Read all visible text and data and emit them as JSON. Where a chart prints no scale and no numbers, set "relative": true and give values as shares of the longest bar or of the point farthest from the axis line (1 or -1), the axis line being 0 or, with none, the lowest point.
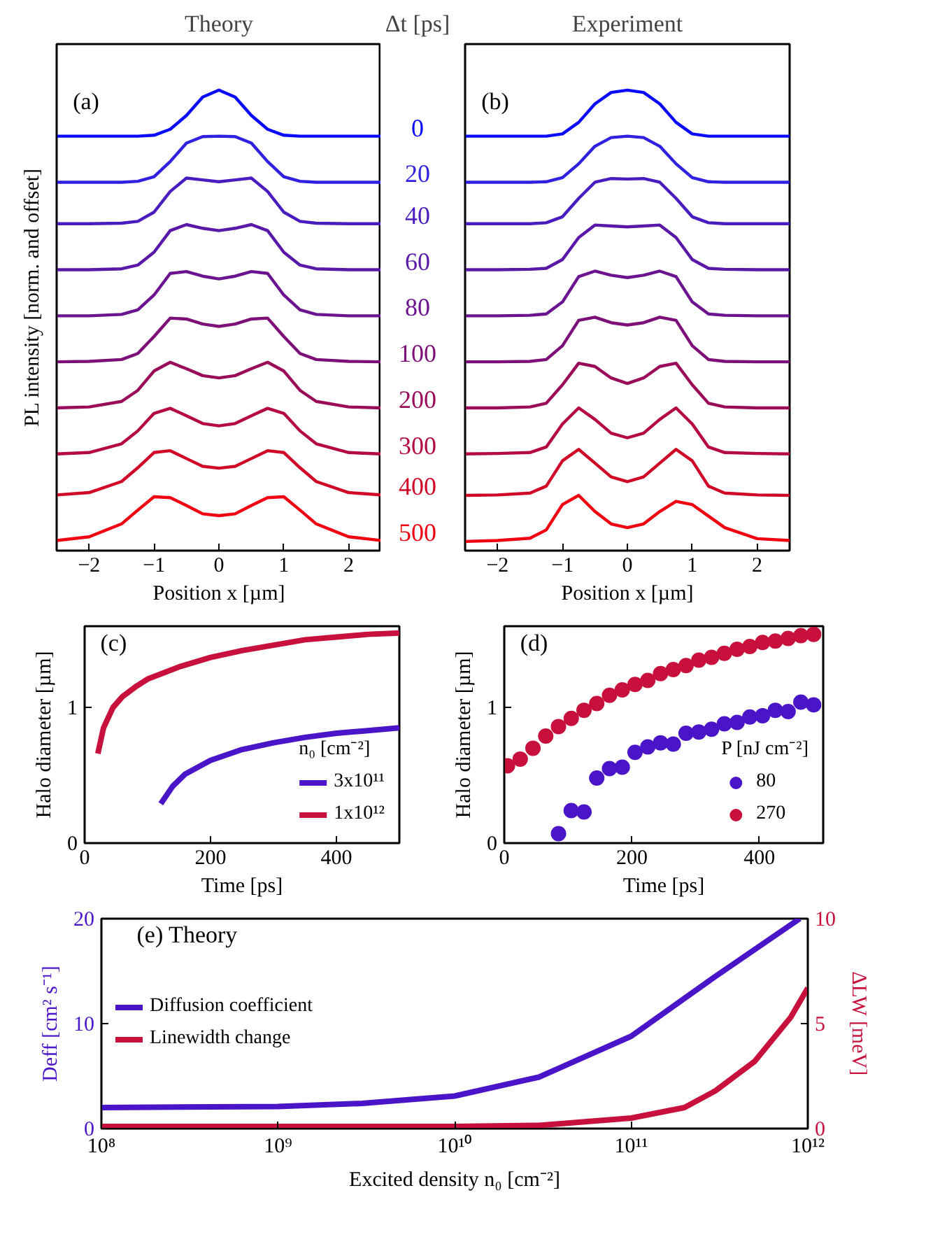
{
  "chart_data": [
    {
      "type": "line",
      "title": "Theory",
      "xlabel": "Position x [µm]",
      "ylabel": "PL intensity [norm. and offset]",
      "legend_title": "Δt [ps]",
      "relative": true,
      "tick_labels": "x",
      "annotations": [
        "(a)"
      ],
      "xlim": [
        -2.5,
        2.5
      ],
      "xticks": [
        -2,
        -1,
        0,
        1,
        2
      ],
      "x": [
        -2.5,
        -2,
        -1.5,
        -1.25,
        -1,
        -0.75,
        -0.5,
        -0.25,
        0,
        0.25,
        0.5,
        0.75,
        1,
        1.25,
        1.5,
        2,
        2.5
      ],
      "series": [
        {
          "name": "0",
          "color": "#0a0aff",
          "values": [
            0.9,
            0.9,
            0.9,
            0.9,
            0.902,
            0.915,
            0.945,
            0.985,
            1.0,
            0.985,
            0.945,
            0.915,
            0.902,
            0.9,
            0.9,
            0.9,
            0.9
          ]
        },
        {
          "name": "20",
          "color": "#3020e0",
          "values": [
            0.8,
            0.8,
            0.8,
            0.802,
            0.812,
            0.845,
            0.885,
            0.899,
            0.9,
            0.899,
            0.885,
            0.845,
            0.812,
            0.802,
            0.8,
            0.8,
            0.8
          ]
        },
        {
          "name": "40",
          "color": "#4a1cc0",
          "values": [
            0.71,
            0.71,
            0.711,
            0.715,
            0.735,
            0.78,
            0.809,
            0.805,
            0.801,
            0.805,
            0.809,
            0.78,
            0.735,
            0.715,
            0.711,
            0.71,
            0.71
          ]
        },
        {
          "name": "60",
          "color": "#5a18a8",
          "values": [
            0.61,
            0.61,
            0.612,
            0.62,
            0.648,
            0.695,
            0.708,
            0.7,
            0.695,
            0.7,
            0.708,
            0.695,
            0.648,
            0.62,
            0.612,
            0.61,
            0.61
          ]
        },
        {
          "name": "80",
          "color": "#6c1490",
          "values": [
            0.51,
            0.51,
            0.513,
            0.523,
            0.555,
            0.602,
            0.606,
            0.596,
            0.59,
            0.596,
            0.606,
            0.602,
            0.555,
            0.523,
            0.513,
            0.51,
            0.51
          ]
        },
        {
          "name": "100",
          "color": "#7d1078",
          "values": [
            0.41,
            0.411,
            0.415,
            0.428,
            0.465,
            0.505,
            0.503,
            0.492,
            0.487,
            0.492,
            0.503,
            0.505,
            0.465,
            0.428,
            0.415,
            0.411,
            0.41
          ]
        },
        {
          "name": "200",
          "color": "#9a0c5a",
          "values": [
            0.31,
            0.312,
            0.324,
            0.348,
            0.39,
            0.409,
            0.395,
            0.38,
            0.375,
            0.38,
            0.395,
            0.409,
            0.39,
            0.348,
            0.324,
            0.312,
            0.31
          ]
        },
        {
          "name": "300",
          "color": "#b40a40",
          "values": [
            0.21,
            0.213,
            0.232,
            0.26,
            0.298,
            0.309,
            0.293,
            0.276,
            0.271,
            0.276,
            0.293,
            0.309,
            0.298,
            0.26,
            0.232,
            0.213,
            0.21
          ]
        },
        {
          "name": "400",
          "color": "#d00828",
          "values": [
            0.121,
            0.126,
            0.15,
            0.18,
            0.213,
            0.217,
            0.2,
            0.183,
            0.179,
            0.183,
            0.2,
            0.217,
            0.213,
            0.18,
            0.15,
            0.126,
            0.121
          ]
        },
        {
          "name": "500",
          "color": "#f00010",
          "values": [
            0.022,
            0.03,
            0.058,
            0.088,
            0.117,
            0.115,
            0.098,
            0.08,
            0.076,
            0.08,
            0.098,
            0.115,
            0.117,
            0.088,
            0.058,
            0.03,
            0.022
          ]
        }
      ]
    },
    {
      "type": "line",
      "title": "Experiment",
      "xlabel": "Position x [µm]",
      "relative": true,
      "tick_labels": "x",
      "annotations": [
        "(b)"
      ],
      "xlim": [
        -2.5,
        2.5
      ],
      "xticks": [
        -2,
        -1,
        0,
        1,
        2
      ],
      "x": [
        -2.5,
        -2,
        -1.5,
        -1.25,
        -1,
        -0.75,
        -0.5,
        -0.25,
        0,
        0.25,
        0.5,
        0.75,
        1,
        1.25,
        1.5,
        2,
        2.5
      ],
      "series": [
        {
          "color": "#0a0aff",
          "values": [
            0.9,
            0.9,
            0.9,
            0.9,
            0.905,
            0.93,
            0.97,
            0.995,
            1.0,
            0.995,
            0.97,
            0.93,
            0.905,
            0.9,
            0.9,
            0.9,
            0.9
          ]
        },
        {
          "color": "#3020e0",
          "values": [
            0.8,
            0.8,
            0.8,
            0.801,
            0.81,
            0.84,
            0.878,
            0.897,
            0.9,
            0.897,
            0.878,
            0.84,
            0.81,
            0.801,
            0.8,
            0.8,
            0.8
          ]
        },
        {
          "color": "#4a1cc0",
          "values": [
            0.71,
            0.71,
            0.71,
            0.712,
            0.725,
            0.765,
            0.8,
            0.808,
            0.807,
            0.808,
            0.8,
            0.765,
            0.725,
            0.712,
            0.71,
            0.71,
            0.71
          ]
        },
        {
          "color": "#5a18a8",
          "values": [
            0.61,
            0.61,
            0.611,
            0.613,
            0.632,
            0.68,
            0.707,
            0.705,
            0.703,
            0.705,
            0.707,
            0.68,
            0.632,
            0.613,
            0.611,
            0.61,
            0.61
          ]
        },
        {
          "color": "#6c1490",
          "values": [
            0.51,
            0.51,
            0.511,
            0.514,
            0.54,
            0.595,
            0.607,
            0.598,
            0.593,
            0.598,
            0.607,
            0.595,
            0.54,
            0.514,
            0.511,
            0.51,
            0.51
          ]
        },
        {
          "color": "#7d1078",
          "values": [
            0.41,
            0.41,
            0.411,
            0.415,
            0.445,
            0.5,
            0.507,
            0.495,
            0.49,
            0.495,
            0.507,
            0.5,
            0.445,
            0.415,
            0.411,
            0.41,
            0.41
          ]
        },
        {
          "color": "#9a0c5a",
          "values": [
            0.31,
            0.31,
            0.312,
            0.32,
            0.36,
            0.407,
            0.4,
            0.375,
            0.363,
            0.375,
            0.4,
            0.407,
            0.36,
            0.32,
            0.312,
            0.31,
            0.31
          ]
        },
        {
          "color": "#b40a40",
          "values": [
            0.21,
            0.211,
            0.213,
            0.225,
            0.275,
            0.31,
            0.285,
            0.255,
            0.245,
            0.255,
            0.285,
            0.31,
            0.275,
            0.225,
            0.213,
            0.211,
            0.21
          ]
        },
        {
          "color": "#d00828",
          "values": [
            0.12,
            0.121,
            0.125,
            0.14,
            0.195,
            0.22,
            0.19,
            0.16,
            0.15,
            0.16,
            0.19,
            0.22,
            0.195,
            0.14,
            0.125,
            0.121,
            0.12
          ]
        },
        {
          "color": "#f00010",
          "values": [
            0.02,
            0.022,
            0.027,
            0.045,
            0.1,
            0.12,
            0.085,
            0.058,
            0.05,
            0.058,
            0.085,
            0.107,
            0.1,
            0.075,
            0.05,
            0.026,
            0.022
          ]
        }
      ]
    },
    {
      "type": "line",
      "xlabel": "Time [ps]",
      "ylabel": "Halo diameter [µm]",
      "legend_title": "n₀ [cm⁻²]",
      "legend": "bottom right",
      "annotations": [
        "(c)"
      ],
      "xlim": [
        0,
        500
      ],
      "xticks": [
        0,
        200,
        400
      ],
      "ylim": [
        0,
        1.6
      ],
      "yticks": [
        0,
        1
      ],
      "series": [
        {
          "name": "3x10¹¹",
          "color": "#4a14c8",
          "x": [
            121,
            140,
            160,
            200,
            250,
            300,
            350,
            400,
            450,
            500
          ],
          "values": [
            0.29,
            0.42,
            0.51,
            0.61,
            0.69,
            0.74,
            0.78,
            0.81,
            0.83,
            0.85
          ]
        },
        {
          "name": "1x10¹²",
          "color": "#c8103c",
          "x": [
            21,
            30,
            45,
            60,
            80,
            100,
            150,
            200,
            250,
            300,
            350,
            400,
            450,
            500
          ],
          "values": [
            0.66,
            0.85,
            1.0,
            1.08,
            1.15,
            1.21,
            1.3,
            1.37,
            1.42,
            1.46,
            1.5,
            1.52,
            1.54,
            1.55
          ]
        }
      ]
    },
    {
      "type": "scatter",
      "marker": "circle",
      "xlabel": "Time [ps]",
      "ylabel": "Halo diameter [µm]",
      "legend_title": "P [nJ cm⁻²]",
      "legend": "bottom right",
      "annotations": [
        "(d)"
      ],
      "xlim": [
        0,
        500
      ],
      "xticks": [
        0,
        200,
        400
      ],
      "ylim": [
        0,
        1.6
      ],
      "yticks": [
        0,
        1
      ],
      "series": [
        {
          "name": "80",
          "color": "#4a14c8",
          "x": [
            85,
            105,
            125,
            145,
            165,
            185,
            205,
            225,
            245,
            265,
            285,
            305,
            325,
            345,
            365,
            385,
            405,
            425,
            445,
            465,
            485
          ],
          "values": [
            0.07,
            0.24,
            0.23,
            0.48,
            0.55,
            0.56,
            0.67,
            0.71,
            0.74,
            0.73,
            0.81,
            0.82,
            0.84,
            0.88,
            0.89,
            0.93,
            0.94,
            0.98,
            0.97,
            1.04,
            1.02
          ]
        },
        {
          "name": "270",
          "color": "#c8103c",
          "x": [
            5,
            25,
            45,
            65,
            85,
            105,
            125,
            145,
            165,
            185,
            205,
            225,
            245,
            265,
            285,
            305,
            325,
            345,
            365,
            385,
            405,
            425,
            445,
            465,
            485
          ],
          "values": [
            0.57,
            0.62,
            0.7,
            0.79,
            0.86,
            0.92,
            0.98,
            1.03,
            1.09,
            1.13,
            1.17,
            1.2,
            1.25,
            1.28,
            1.31,
            1.35,
            1.37,
            1.4,
            1.43,
            1.45,
            1.48,
            1.49,
            1.51,
            1.53,
            1.54
          ]
        }
      ]
    },
    {
      "type": "line",
      "log": "x",
      "xlabel": "Excited density n₀ [cm⁻²]",
      "ylabel": "Deff [cm² s⁻¹]",
      "y2label": "ΔLW [meV]",
      "legend": "left",
      "annotations": [
        "(e) Theory"
      ],
      "xlim": [
        100000000.0,
        1000000000000.0
      ],
      "xticks": [
        {
          "value": 100000000.0,
          "label": "10⁸"
        },
        {
          "value": 1000000000.0,
          "label": "10⁹"
        },
        {
          "value": 10000000000.0,
          "label": "10¹⁰"
        },
        {
          "value": 100000000000.0,
          "label": "10¹¹"
        },
        {
          "value": 1000000000000.0,
          "label": "10¹²"
        }
      ],
      "ylim": [
        0,
        20
      ],
      "yticks": [
        0,
        10,
        20
      ],
      "y2lim": [
        0,
        10
      ],
      "y2ticks": [
        0,
        5,
        10
      ],
      "series": [
        {
          "name": "Diffusion coefficient",
          "color": "#4a14c8",
          "x": [
            100000000.0,
            1000000000.0,
            3000000000.0,
            10000000000.0,
            30000000000.0,
            100000000000.0,
            300000000000.0,
            900000000000.0
          ],
          "values": [
            2.0,
            2.1,
            2.4,
            3.1,
            4.9,
            8.8,
            14.5,
            20
          ]
        },
        {
          "name": "Linewidth change",
          "color": "#c8103c",
          "axis": "y2",
          "x": [
            100000000.0,
            1000000000.0,
            10000000000.0,
            30000000000.0,
            100000000000.0,
            200000000000.0,
            300000000000.0,
            500000000000.0,
            800000000000.0,
            1000000000000.0
          ],
          "values": [
            0.1,
            0.1,
            0.1,
            0.15,
            0.5,
            1.0,
            1.8,
            3.2,
            5.3,
            6.7
          ]
        }
      ]
    }
  ]
}
